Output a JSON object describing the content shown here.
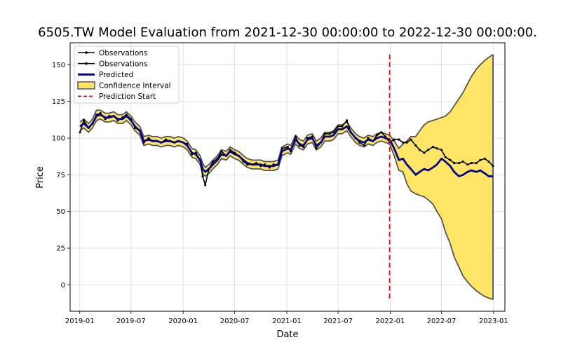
{
  "chart_data": {
    "type": "line",
    "title": "6505.TW Model Evaluation from 2021-12-30 00:00:00 to 2022-12-30 00:00:00.",
    "xlabel": "Date",
    "ylabel": "Price",
    "ylim": [
      -18,
      165
    ],
    "xlim": [
      "2018-11-28",
      "2023-02-10"
    ],
    "x_ticks": [
      "2019-01",
      "2019-07",
      "2020-01",
      "2020-07",
      "2021-01",
      "2021-07",
      "2022-01",
      "2022-07",
      "2023-01"
    ],
    "y_ticks": [
      0,
      25,
      50,
      75,
      100,
      125,
      150
    ],
    "grid": true,
    "legend_position": "top-left",
    "prediction_start": "2021-12-30",
    "legend": [
      {
        "label": "Observations",
        "kind": "obs"
      },
      {
        "label": "Observations",
        "kind": "obs"
      },
      {
        "label": "Predicted",
        "kind": "pred"
      },
      {
        "label": "Confidence Interval",
        "kind": "ci"
      },
      {
        "label": "Prediction Start",
        "kind": "start"
      }
    ],
    "colors": {
      "observations": "#000000",
      "predicted": "#00008b",
      "ci_fill": "#ffe566",
      "ci_edge": "#555555",
      "prediction_start": "#ff0000",
      "grid": "#d9d9d9"
    },
    "series": [
      {
        "name": "Observations",
        "dates": [
          "2019-01-02",
          "2019-01-15",
          "2019-02-01",
          "2019-02-15",
          "2019-03-01",
          "2019-03-15",
          "2019-04-01",
          "2019-04-15",
          "2019-05-01",
          "2019-05-15",
          "2019-06-01",
          "2019-06-15",
          "2019-07-01",
          "2019-07-15",
          "2019-08-01",
          "2019-08-15",
          "2019-09-01",
          "2019-09-15",
          "2019-10-01",
          "2019-10-15",
          "2019-11-01",
          "2019-11-15",
          "2019-12-01",
          "2019-12-15",
          "2020-01-02",
          "2020-01-15",
          "2020-02-01",
          "2020-02-15",
          "2020-03-01",
          "2020-03-10",
          "2020-03-19",
          "2020-04-01",
          "2020-04-15",
          "2020-05-01",
          "2020-05-15",
          "2020-06-01",
          "2020-06-15",
          "2020-07-01",
          "2020-07-15",
          "2020-08-01",
          "2020-08-15",
          "2020-09-01",
          "2020-09-15",
          "2020-10-01",
          "2020-10-15",
          "2020-11-01",
          "2020-11-15",
          "2020-12-01",
          "2020-12-15",
          "2021-01-04",
          "2021-01-15",
          "2021-02-01",
          "2021-02-15",
          "2021-03-01",
          "2021-03-15",
          "2021-04-01",
          "2021-04-15",
          "2021-05-01",
          "2021-05-15",
          "2021-06-01",
          "2021-06-15",
          "2021-07-01",
          "2021-07-15",
          "2021-08-01",
          "2021-08-15",
          "2021-09-01",
          "2021-09-15",
          "2021-10-01",
          "2021-10-15",
          "2021-11-01",
          "2021-11-15",
          "2021-12-01",
          "2021-12-15",
          "2021-12-30",
          "2022-01-15",
          "2022-02-01",
          "2022-02-15",
          "2022-03-01",
          "2022-03-15",
          "2022-04-01",
          "2022-04-15",
          "2022-05-01",
          "2022-05-15",
          "2022-06-01",
          "2022-06-15",
          "2022-07-01",
          "2022-07-15",
          "2022-08-01",
          "2022-08-15",
          "2022-09-01",
          "2022-09-15",
          "2022-10-01",
          "2022-10-15",
          "2022-11-01",
          "2022-11-15",
          "2022-12-01",
          "2022-12-15",
          "2022-12-30"
        ],
        "values": [
          104,
          112,
          107,
          110,
          116,
          117,
          113,
          115,
          115,
          112,
          114,
          116,
          113,
          107,
          105,
          97,
          100,
          98,
          98,
          97,
          99,
          98,
          97,
          98,
          97,
          96,
          89,
          90,
          85,
          74,
          68,
          79,
          84,
          86,
          91,
          88,
          92,
          90,
          88,
          84,
          82,
          82,
          83,
          81,
          82,
          80,
          82,
          82,
          93,
          94,
          91,
          101,
          95,
          94,
          100,
          101,
          93,
          97,
          103,
          103,
          104,
          108,
          108,
          112,
          104,
          100,
          97,
          95,
          100,
          98,
          102,
          104,
          101,
          97,
          99,
          99,
          97,
          97,
          99,
          95,
          92,
          90,
          92,
          94,
          93,
          92,
          87,
          85,
          83,
          83,
          84,
          82,
          83,
          83,
          85,
          86,
          84,
          81
        ]
      },
      {
        "name": "Predicted",
        "dates": [
          "2019-01-02",
          "2019-01-15",
          "2019-02-01",
          "2019-02-15",
          "2019-03-01",
          "2019-03-15",
          "2019-04-01",
          "2019-04-15",
          "2019-05-01",
          "2019-05-15",
          "2019-06-01",
          "2019-06-15",
          "2019-07-01",
          "2019-07-15",
          "2019-08-01",
          "2019-08-15",
          "2019-09-01",
          "2019-09-15",
          "2019-10-01",
          "2019-10-15",
          "2019-11-01",
          "2019-11-15",
          "2019-12-01",
          "2019-12-15",
          "2020-01-02",
          "2020-01-15",
          "2020-02-01",
          "2020-02-15",
          "2020-03-01",
          "2020-03-10",
          "2020-03-19",
          "2020-04-01",
          "2020-04-15",
          "2020-05-01",
          "2020-05-15",
          "2020-06-01",
          "2020-06-15",
          "2020-07-01",
          "2020-07-15",
          "2020-08-01",
          "2020-08-15",
          "2020-09-01",
          "2020-09-15",
          "2020-10-01",
          "2020-10-15",
          "2020-11-01",
          "2020-11-15",
          "2020-12-01",
          "2020-12-15",
          "2021-01-04",
          "2021-01-15",
          "2021-02-01",
          "2021-02-15",
          "2021-03-01",
          "2021-03-15",
          "2021-04-01",
          "2021-04-15",
          "2021-05-01",
          "2021-05-15",
          "2021-06-01",
          "2021-06-15",
          "2021-07-01",
          "2021-07-15",
          "2021-08-01",
          "2021-08-15",
          "2021-09-01",
          "2021-09-15",
          "2021-10-01",
          "2021-10-15",
          "2021-11-01",
          "2021-11-15",
          "2021-12-01",
          "2021-12-15",
          "2021-12-30",
          "2022-01-15",
          "2022-02-01",
          "2022-02-15",
          "2022-03-01",
          "2022-03-15",
          "2022-04-01",
          "2022-04-15",
          "2022-05-01",
          "2022-05-15",
          "2022-06-01",
          "2022-06-15",
          "2022-07-01",
          "2022-07-15",
          "2022-08-01",
          "2022-08-15",
          "2022-09-01",
          "2022-09-15",
          "2022-10-01",
          "2022-10-15",
          "2022-11-01",
          "2022-11-15",
          "2022-12-01",
          "2022-12-15",
          "2022-12-30"
        ],
        "values": [
          108,
          110,
          107,
          110,
          115,
          116,
          114,
          114,
          115,
          113,
          113,
          115,
          112,
          108,
          105,
          98,
          99,
          98,
          98,
          97,
          98,
          98,
          97,
          98,
          97,
          95,
          90,
          89,
          85,
          79,
          77,
          79,
          82,
          85,
          89,
          88,
          91,
          89,
          88,
          85,
          83,
          82,
          82,
          82,
          81,
          81,
          81,
          82,
          91,
          93,
          92,
          99,
          96,
          95,
          99,
          100,
          95,
          97,
          101,
          101,
          102,
          106,
          106,
          108,
          104,
          100,
          98,
          97,
          99,
          98,
          100,
          101,
          100,
          99,
          93,
          85,
          86,
          82,
          79,
          75,
          77,
          79,
          78,
          80,
          82,
          86,
          84,
          81,
          77,
          74,
          75,
          77,
          78,
          77,
          78,
          76,
          74,
          74
        ]
      }
    ],
    "confidence_interval": {
      "name": "Confidence Interval",
      "dates": [
        "2019-01-02",
        "2019-01-15",
        "2019-02-01",
        "2019-02-15",
        "2019-03-01",
        "2019-03-15",
        "2019-04-01",
        "2019-04-15",
        "2019-05-01",
        "2019-05-15",
        "2019-06-01",
        "2019-06-15",
        "2019-07-01",
        "2019-07-15",
        "2019-08-01",
        "2019-08-15",
        "2019-09-01",
        "2019-09-15",
        "2019-10-01",
        "2019-10-15",
        "2019-11-01",
        "2019-11-15",
        "2019-12-01",
        "2019-12-15",
        "2020-01-02",
        "2020-01-15",
        "2020-02-01",
        "2020-02-15",
        "2020-03-01",
        "2020-03-10",
        "2020-03-19",
        "2020-04-01",
        "2020-04-15",
        "2020-05-01",
        "2020-05-15",
        "2020-06-01",
        "2020-06-15",
        "2020-07-01",
        "2020-07-15",
        "2020-08-01",
        "2020-08-15",
        "2020-09-01",
        "2020-09-15",
        "2020-10-01",
        "2020-10-15",
        "2020-11-01",
        "2020-11-15",
        "2020-12-01",
        "2020-12-15",
        "2021-01-04",
        "2021-01-15",
        "2021-02-01",
        "2021-02-15",
        "2021-03-01",
        "2021-03-15",
        "2021-04-01",
        "2021-04-15",
        "2021-05-01",
        "2021-05-15",
        "2021-06-01",
        "2021-06-15",
        "2021-07-01",
        "2021-07-15",
        "2021-08-01",
        "2021-08-15",
        "2021-09-01",
        "2021-09-15",
        "2021-10-01",
        "2021-10-15",
        "2021-11-01",
        "2021-11-15",
        "2021-12-01",
        "2021-12-15",
        "2021-12-30",
        "2022-01-15",
        "2022-02-01",
        "2022-02-15",
        "2022-03-01",
        "2022-03-15",
        "2022-04-01",
        "2022-04-15",
        "2022-05-01",
        "2022-05-15",
        "2022-06-01",
        "2022-06-15",
        "2022-07-01",
        "2022-07-15",
        "2022-08-01",
        "2022-08-15",
        "2022-09-01",
        "2022-09-15",
        "2022-10-01",
        "2022-10-15",
        "2022-11-01",
        "2022-11-15",
        "2022-12-01",
        "2022-12-15",
        "2022-12-30"
      ],
      "upper": [
        111,
        113,
        110,
        113,
        119,
        119,
        117,
        117,
        118,
        116,
        116,
        118,
        115,
        111,
        108,
        101,
        102,
        101,
        101,
        100,
        101,
        101,
        100,
        101,
        100,
        98,
        93,
        92,
        88,
        83,
        80,
        82,
        85,
        88,
        92,
        91,
        94,
        92,
        91,
        88,
        86,
        85,
        85,
        85,
        84,
        84,
        84,
        85,
        94,
        96,
        95,
        102,
        99,
        98,
        102,
        103,
        98,
        100,
        104,
        104,
        105,
        109,
        109,
        111,
        107,
        103,
        101,
        100,
        102,
        101,
        103,
        104,
        103,
        102,
        98,
        93,
        96,
        98,
        101,
        101,
        105,
        109,
        111,
        112,
        113,
        114,
        115,
        118,
        122,
        127,
        131,
        137,
        142,
        147,
        150,
        153,
        155,
        157
      ],
      "lower": [
        105,
        107,
        104,
        107,
        112,
        113,
        111,
        111,
        112,
        110,
        110,
        112,
        109,
        105,
        102,
        95,
        96,
        95,
        95,
        94,
        95,
        95,
        94,
        95,
        94,
        92,
        87,
        86,
        82,
        76,
        74,
        76,
        79,
        82,
        86,
        85,
        88,
        86,
        85,
        82,
        80,
        79,
        79,
        79,
        78,
        78,
        78,
        79,
        88,
        90,
        89,
        96,
        93,
        92,
        96,
        97,
        92,
        94,
        98,
        98,
        99,
        103,
        103,
        105,
        101,
        97,
        95,
        94,
        96,
        95,
        97,
        98,
        97,
        96,
        88,
        78,
        77,
        69,
        64,
        62,
        61,
        60,
        58,
        55,
        50,
        45,
        36,
        28,
        19,
        12,
        6,
        2,
        -1,
        -4,
        -6,
        -8,
        -9,
        -10
      ]
    }
  }
}
